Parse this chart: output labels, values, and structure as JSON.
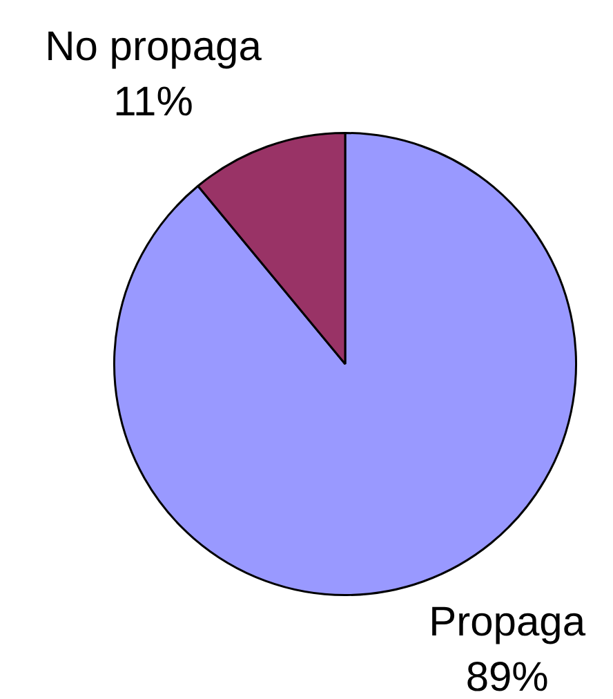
{
  "chart_data": {
    "type": "pie",
    "categories": [
      "Propaga",
      "No propaga"
    ],
    "values": [
      89,
      11
    ],
    "colors": [
      "#9999ff",
      "#993366"
    ],
    "value_labels": [
      "89%",
      "11%"
    ],
    "legend": false
  }
}
